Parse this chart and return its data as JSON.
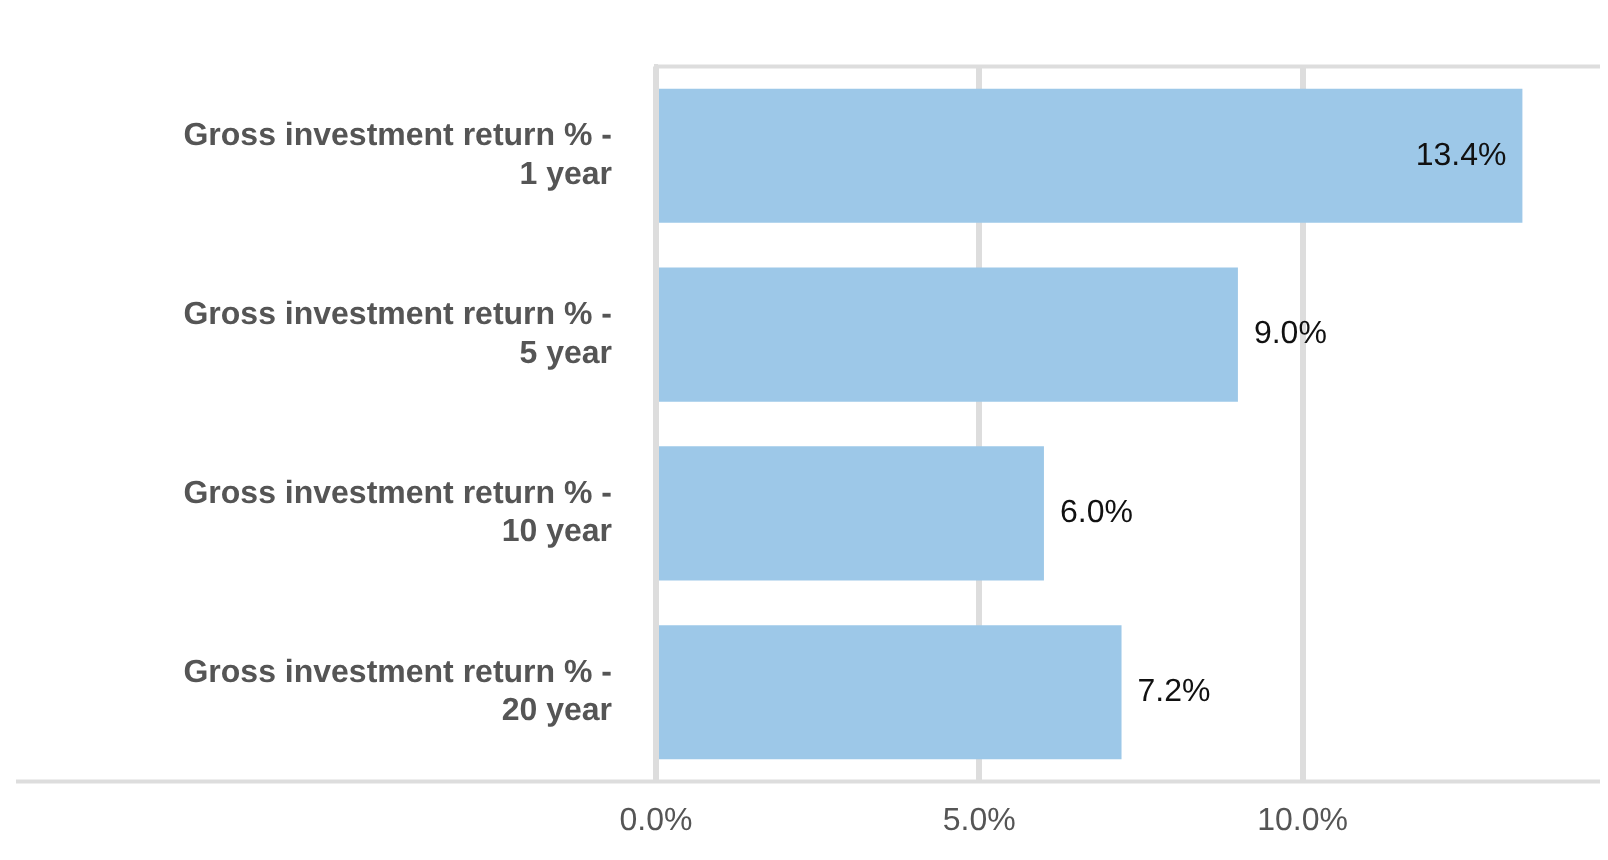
{
  "chart_data": {
    "type": "bar",
    "orientation": "horizontal",
    "categories": [
      "Gross investment return % - 1 year",
      "Gross investment return % - 5 year",
      "Gross investment return % - 10 year",
      "Gross investment return % - 20 year"
    ],
    "values": [
      13.4,
      9.0,
      6.0,
      7.2
    ],
    "value_labels": [
      "13.4%",
      "9.0%",
      "6.0%",
      "7.2%"
    ],
    "color": "#9dc8e8",
    "xlim": [
      0,
      14.6
    ],
    "xticks": [
      {
        "value": 0,
        "label": "0.0%"
      },
      {
        "value": 5,
        "label": "5.0%"
      },
      {
        "value": 10,
        "label": "10.0%"
      }
    ],
    "grid": "x",
    "legend": false
  }
}
